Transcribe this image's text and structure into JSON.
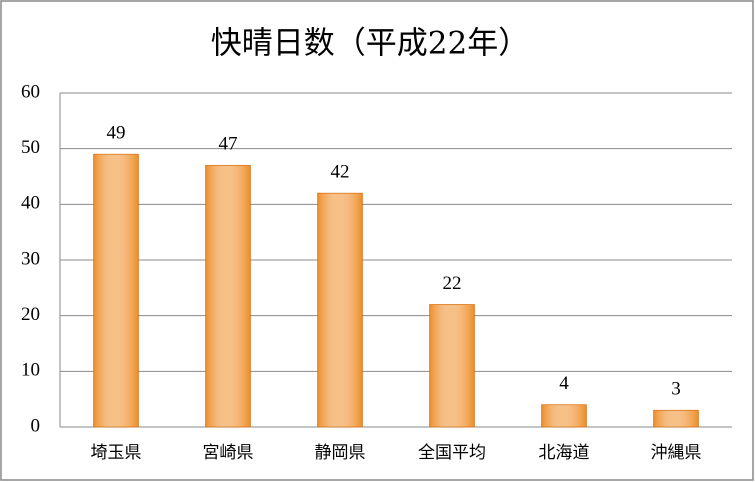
{
  "chart_data": {
    "type": "bar",
    "title": "快晴日数（平成22年）",
    "categories": [
      "埼玉県",
      "宮崎県",
      "静岡県",
      "全国平均",
      "北海道",
      "沖縄県"
    ],
    "values": [
      49,
      47,
      42,
      22,
      4,
      3
    ],
    "color": "#ee8c26",
    "ylim": [
      0,
      60
    ],
    "yticks": [
      0,
      10,
      20,
      30,
      40,
      50,
      60
    ],
    "grid": true
  }
}
